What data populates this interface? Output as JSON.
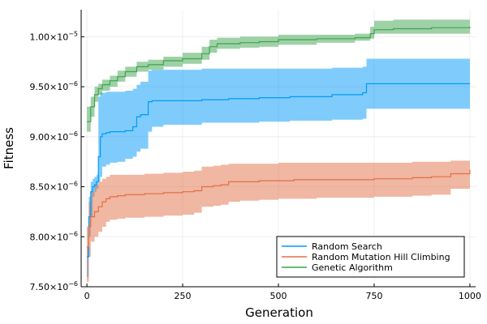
{
  "chart_data": {
    "type": "line",
    "title": "",
    "xlabel": "Generation",
    "ylabel": "Fitness",
    "xlim": [
      -15,
      1015
    ],
    "ylim": [
      7.5e-06,
      1.027e-05
    ],
    "x_ticks": [
      0,
      250,
      500,
      750,
      1000
    ],
    "x_tick_labels": [
      "0",
      "250",
      "500",
      "750",
      "1000"
    ],
    "y_ticks": [
      7.5e-06,
      8e-06,
      8.5e-06,
      9e-06,
      9.5e-06,
      1e-05
    ],
    "y_tick_mantissas": [
      "7.50",
      "8.00",
      "8.50",
      "9.00",
      "9.50",
      "1.00"
    ],
    "y_tick_exponents": [
      "−6",
      "−6",
      "−6",
      "−6",
      "−6",
      "−5"
    ],
    "y_tick_base": "×10",
    "grid": true,
    "legend_position": "bottom-right",
    "series": [
      {
        "name": "Random Search",
        "color": "#009AFA",
        "band_color": "#009AFA",
        "x": [
          0,
          5,
          10,
          15,
          20,
          25,
          30,
          35,
          40,
          50,
          60,
          80,
          100,
          120,
          130,
          140,
          160,
          170,
          200,
          300,
          370,
          450,
          530,
          640,
          720,
          730,
          800,
          900,
          1000
        ],
        "mean": [
          7.8e-06,
          8.2e-06,
          8.45e-06,
          8.5e-06,
          8.52e-06,
          8.55e-06,
          8.8e-06,
          9e-06,
          9.03e-06,
          9.04e-06,
          9.05e-06,
          9.05e-06,
          9.06e-06,
          9.1e-06,
          9.2e-06,
          9.22e-06,
          9.35e-06,
          9.36e-06,
          9.36e-06,
          9.37e-06,
          9.38e-06,
          9.39e-06,
          9.4e-06,
          9.42e-06,
          9.44e-06,
          9.53e-06,
          9.53e-06,
          9.53e-06,
          9.53e-06
        ],
        "lower": [
          7.6e-06,
          8e-06,
          8.2e-06,
          8.4e-06,
          8.45e-06,
          8.48e-06,
          8.55e-06,
          8.6e-06,
          8.7e-06,
          8.72e-06,
          8.74e-06,
          8.75e-06,
          8.78e-06,
          8.8e-06,
          8.85e-06,
          8.88e-06,
          9.05e-06,
          9.1e-06,
          9.12e-06,
          9.14e-06,
          9.14e-06,
          9.15e-06,
          9.16e-06,
          9.17e-06,
          9.18e-06,
          9.28e-06,
          9.28e-06,
          9.28e-06,
          9.28e-06
        ],
        "upper": [
          7.9e-06,
          8.4e-06,
          8.55e-06,
          8.58e-06,
          8.6e-06,
          8.62e-06,
          9.4e-06,
          9.44e-06,
          9.44e-06,
          9.45e-06,
          9.45e-06,
          9.45e-06,
          9.46e-06,
          9.48e-06,
          9.52e-06,
          9.55e-06,
          9.66e-06,
          9.67e-06,
          9.67e-06,
          9.68e-06,
          9.68e-06,
          9.68e-06,
          9.68e-06,
          9.69e-06,
          9.7e-06,
          9.78e-06,
          9.78e-06,
          9.78e-06,
          9.78e-06
        ]
      },
      {
        "name": "Random Mutation Hill Climbing",
        "color": "#E26F46",
        "band_color": "#E26F46",
        "x": [
          0,
          5,
          10,
          20,
          30,
          40,
          50,
          60,
          80,
          100,
          150,
          200,
          250,
          280,
          300,
          330,
          350,
          370,
          400,
          450,
          500,
          540,
          600,
          700,
          750,
          800,
          850,
          900,
          950,
          1000
        ],
        "mean": [
          7.9e-06,
          8.1e-06,
          8.2e-06,
          8.25e-06,
          8.3e-06,
          8.35e-06,
          8.38e-06,
          8.4e-06,
          8.41e-06,
          8.42e-06,
          8.43e-06,
          8.44e-06,
          8.45e-06,
          8.46e-06,
          8.5e-06,
          8.51e-06,
          8.52e-06,
          8.55e-06,
          8.55e-06,
          8.56e-06,
          8.56e-06,
          8.57e-06,
          8.57e-06,
          8.57e-06,
          8.58e-06,
          8.58e-06,
          8.59e-06,
          8.6e-06,
          8.63e-06,
          8.67e-06
        ],
        "lower": [
          7.55e-06,
          7.8e-06,
          7.95e-06,
          8e-06,
          8.05e-06,
          8.1e-06,
          8.15e-06,
          8.17e-06,
          8.18e-06,
          8.19e-06,
          8.2e-06,
          8.21e-06,
          8.22e-06,
          8.24e-06,
          8.3e-06,
          8.31e-06,
          8.32e-06,
          8.35e-06,
          8.36e-06,
          8.37e-06,
          8.38e-06,
          8.38e-06,
          8.39e-06,
          8.39e-06,
          8.4e-06,
          8.4e-06,
          8.41e-06,
          8.42e-06,
          8.48e-06,
          8.56e-06
        ],
        "upper": [
          8.1e-06,
          8.35e-06,
          8.45e-06,
          8.52e-06,
          8.55e-06,
          8.58e-06,
          8.6e-06,
          8.62e-06,
          8.62e-06,
          8.62e-06,
          8.63e-06,
          8.64e-06,
          8.65e-06,
          8.66e-06,
          8.7e-06,
          8.71e-06,
          8.72e-06,
          8.73e-06,
          8.73e-06,
          8.73e-06,
          8.74e-06,
          8.74e-06,
          8.74e-06,
          8.74e-06,
          8.74e-06,
          8.74e-06,
          8.75e-06,
          8.75e-06,
          8.76e-06,
          8.78e-06
        ]
      },
      {
        "name": "Genetic Algorithm",
        "color": "#3DA44D",
        "band_color": "#3DA44D",
        "x": [
          0,
          10,
          20,
          30,
          40,
          60,
          80,
          100,
          130,
          160,
          200,
          250,
          300,
          320,
          340,
          400,
          450,
          500,
          600,
          700,
          740,
          750,
          800,
          900,
          1000
        ],
        "mean": [
          9.15e-06,
          9.3e-06,
          9.42e-06,
          9.48e-06,
          9.52e-06,
          9.56e-06,
          9.6e-06,
          9.65e-06,
          9.7e-06,
          9.72e-06,
          9.76e-06,
          9.78e-06,
          9.83e-06,
          9.9e-06,
          9.93e-06,
          9.94e-06,
          9.95e-06,
          9.97e-06,
          9.98e-06,
          9.99e-06,
          1.003e-05,
          1.007e-05,
          1.008e-05,
          1.009e-05,
          1.01e-05
        ],
        "lower": [
          9.05e-06,
          9.2e-06,
          9.35e-06,
          9.42e-06,
          9.46e-06,
          9.5e-06,
          9.55e-06,
          9.6e-06,
          9.65e-06,
          9.67e-06,
          9.7e-06,
          9.73e-06,
          9.77e-06,
          9.84e-06,
          9.88e-06,
          9.89e-06,
          9.9e-06,
          9.92e-06,
          9.94e-06,
          9.96e-06,
          9.98e-06,
          1.003e-05,
          1.003e-05,
          1.003e-05,
          1.003e-05
        ],
        "upper": [
          9.3e-06,
          9.4e-06,
          9.5e-06,
          9.53e-06,
          9.57e-06,
          9.61e-06,
          9.66e-06,
          9.7e-06,
          9.75e-06,
          9.77e-06,
          9.8e-06,
          9.84e-06,
          9.9e-06,
          9.97e-06,
          9.99e-06,
          1e-05,
          1e-05,
          1.002e-05,
          1.002e-05,
          1.003e-05,
          1.01e-05,
          1.016e-05,
          1.017e-05,
          1.017e-05,
          1.017e-05
        ]
      }
    ]
  }
}
